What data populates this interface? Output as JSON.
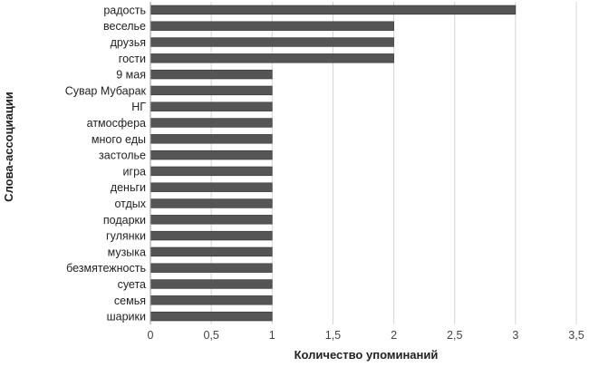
{
  "chart_data": {
    "type": "bar",
    "orientation": "horizontal",
    "categories": [
      "радость",
      "веселье",
      "друзья",
      "гости",
      "9 мая",
      "Сувар Мубарак",
      "НГ",
      "атмосфера",
      "много еды",
      "застолье",
      "игра",
      "деньги",
      "отдых",
      "подарки",
      "гулянки",
      "музыка",
      "безмятежность",
      "суета",
      "семья",
      "шарики"
    ],
    "values": [
      3,
      2,
      2,
      2,
      1,
      1,
      1,
      1,
      1,
      1,
      1,
      1,
      1,
      1,
      1,
      1,
      1,
      1,
      1,
      1
    ],
    "xlabel": "Количество упоминаний",
    "ylabel": "Слова-ассоциации",
    "xlim": [
      0,
      3.5
    ],
    "xticks": [
      "0",
      "0,5",
      "1",
      "1,5",
      "2",
      "2,5",
      "3",
      "3,5"
    ],
    "grid": "vertical",
    "legend": "none",
    "bar_color": "#555555"
  }
}
